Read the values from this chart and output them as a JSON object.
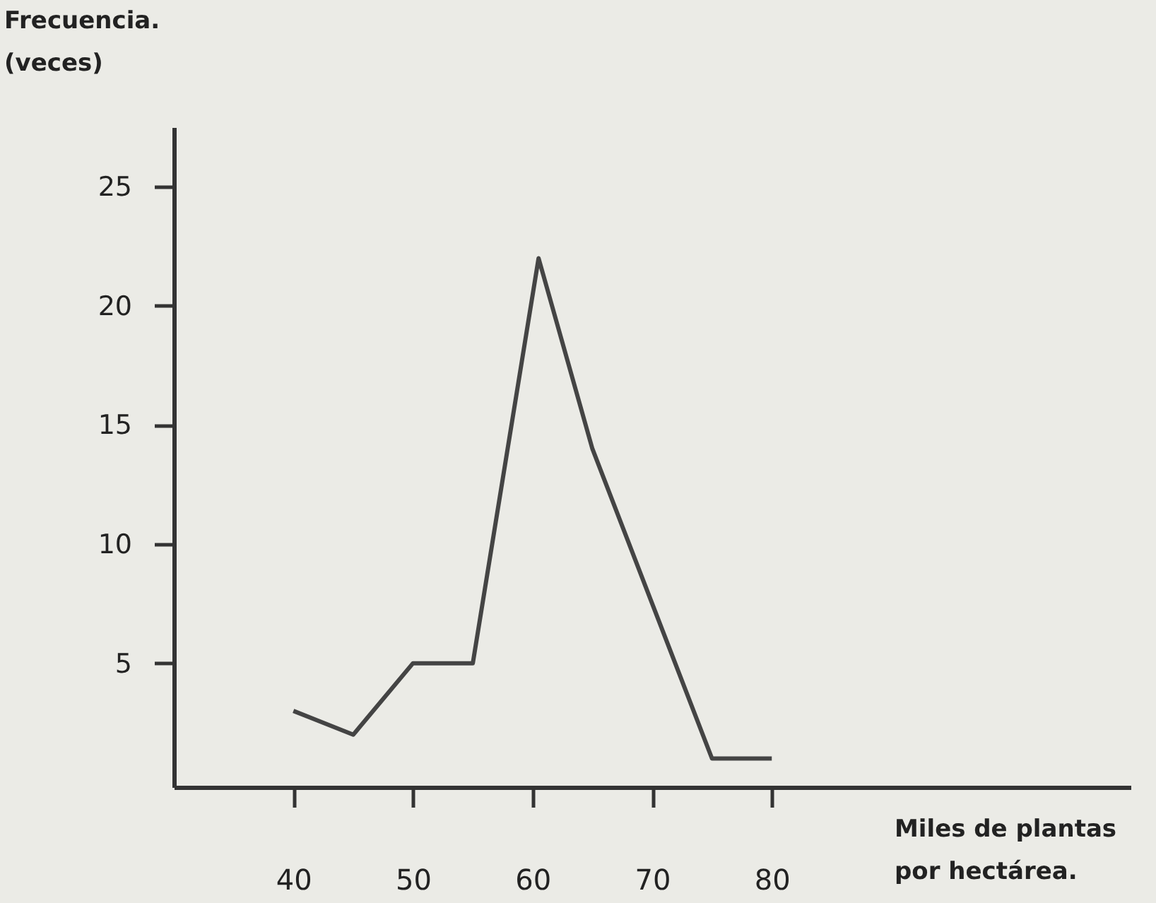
{
  "chart_data": {
    "type": "line",
    "xlabel": "Miles de plantas\npor hectárea.",
    "ylabel": "Frecuencia.\n(veces)",
    "x": [
      40,
      45,
      50,
      55,
      60.5,
      65,
      70,
      75,
      80
    ],
    "series": [
      {
        "color": "#444444",
        "values": [
          3,
          2,
          5,
          5,
          22,
          14,
          7.5,
          1,
          1
        ]
      }
    ],
    "xlim": [
      30,
      110
    ],
    "xticks": [
      40,
      50,
      60,
      70,
      80
    ],
    "ylim": [
      -0.2,
      27.5
    ],
    "yticks": [
      5,
      10,
      15,
      20,
      25
    ],
    "grid": false,
    "legend": false,
    "marker": "none",
    "line_style": "solid"
  }
}
